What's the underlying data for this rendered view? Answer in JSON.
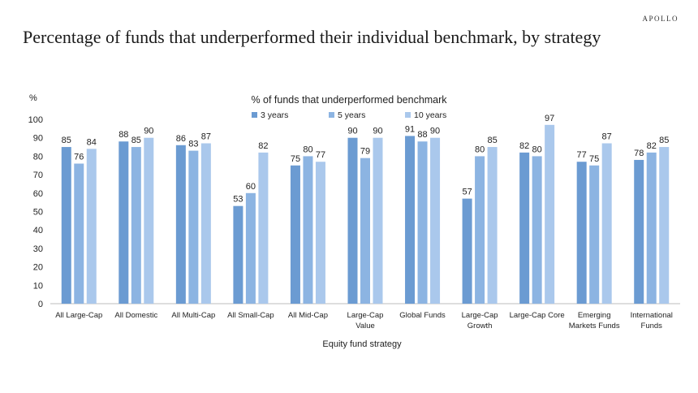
{
  "brand": "APOLLO",
  "title": "Percentage of  funds that underperformed their individual benchmark, by strategy",
  "chart_data": {
    "type": "bar",
    "title": "% of funds that underperformed benchmark",
    "ylabel": "%",
    "xlabel": "Equity fund strategy",
    "ylim": [
      0,
      100
    ],
    "yticks": [
      0,
      10,
      20,
      30,
      40,
      50,
      60,
      70,
      80,
      90,
      100
    ],
    "grid": false,
    "legend_position": "top-center",
    "categories": [
      [
        "All Large-Cap"
      ],
      [
        "All Domestic"
      ],
      [
        "All Multi-Cap"
      ],
      [
        "All Small-Cap"
      ],
      [
        "All Mid-Cap"
      ],
      [
        "Large-Cap",
        "Value"
      ],
      [
        "Global Funds"
      ],
      [
        "Large-Cap",
        "Growth"
      ],
      [
        "Large-Cap Core"
      ],
      [
        "Emerging",
        "Markets Funds"
      ],
      [
        "International",
        "Funds"
      ]
    ],
    "series": [
      {
        "name": "3 years",
        "color": "#6b9bd2",
        "values": [
          85,
          88,
          86,
          53,
          75,
          90,
          91,
          57,
          82,
          77,
          78
        ]
      },
      {
        "name": "5 years",
        "color": "#8cb4e2",
        "values": [
          76,
          85,
          83,
          60,
          80,
          79,
          88,
          80,
          80,
          75,
          82
        ]
      },
      {
        "name": "10 years",
        "color": "#aac8ec",
        "values": [
          84,
          90,
          87,
          82,
          77,
          90,
          90,
          85,
          97,
          87,
          85
        ]
      }
    ]
  }
}
